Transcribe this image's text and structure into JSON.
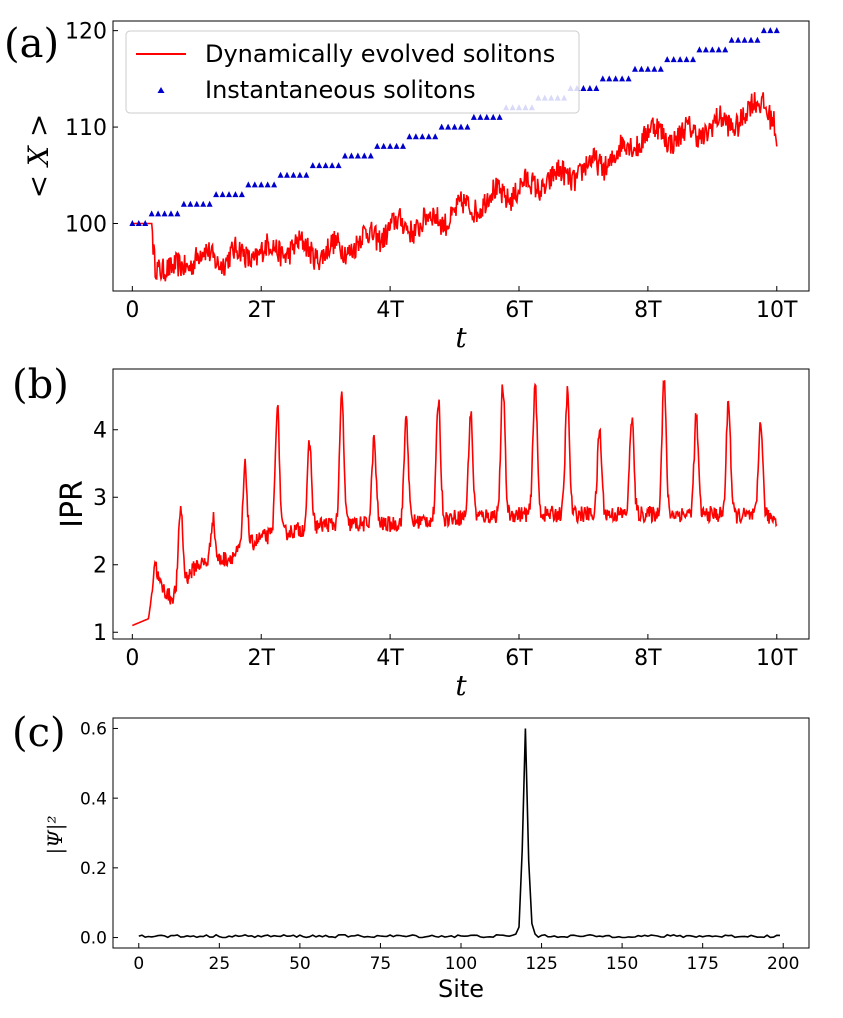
{
  "chart_data": [
    {
      "panel": "(a)",
      "type": "line+scatter",
      "xlabel": "t",
      "ylabel": "< X >",
      "xlim": [
        -0.3,
        10.5
      ],
      "ylim": [
        93,
        121
      ],
      "xticks": [
        0,
        2,
        4,
        6,
        8,
        10
      ],
      "xtick_labels": [
        "0",
        "2T",
        "4T",
        "6T",
        "8T",
        "10T"
      ],
      "yticks": [
        100,
        110,
        120
      ],
      "ytick_labels": [
        "100",
        "110",
        "120"
      ],
      "legend": {
        "position": "top-left",
        "entries": [
          "Dynamically evolved solitons",
          "Instantaneous solitons"
        ]
      },
      "series": [
        {
          "name": "Dynamically evolved solitons",
          "kind": "line",
          "color": "#ff0000",
          "keypoints": [
            [
              0,
              100
            ],
            [
              0.3,
              100
            ],
            [
              0.35,
              96.5
            ],
            [
              0.45,
              95.5
            ],
            [
              0.6,
              94.5
            ],
            [
              0.8,
              96
            ],
            [
              1.0,
              96.5
            ],
            [
              1.5,
              96.5
            ],
            [
              2.0,
              97
            ],
            [
              2.5,
              97.5
            ],
            [
              3.0,
              97
            ],
            [
              3.5,
              98
            ],
            [
              4.0,
              99.5
            ],
            [
              4.5,
              100
            ],
            [
              5.0,
              101
            ],
            [
              5.5,
              102.5
            ],
            [
              6.0,
              103.5
            ],
            [
              6.5,
              104.5
            ],
            [
              7.0,
              105.5
            ],
            [
              7.5,
              107
            ],
            [
              8.0,
              109.5
            ],
            [
              8.5,
              109
            ],
            [
              9.0,
              110
            ],
            [
              9.5,
              111
            ],
            [
              9.8,
              113
            ],
            [
              9.95,
              111
            ],
            [
              10.0,
              108
            ]
          ],
          "noise": 1.3
        },
        {
          "name": "Instantaneous solitons",
          "kind": "scatter",
          "marker": "triangle",
          "color": "#0000cd",
          "step_values": [
            100,
            101,
            102,
            103,
            104,
            105,
            106,
            107,
            108,
            109,
            110,
            111,
            112,
            113,
            114,
            115,
            116,
            117,
            118,
            119,
            120
          ]
        }
      ]
    },
    {
      "panel": "(b)",
      "type": "line",
      "xlabel": "t",
      "ylabel": "IPR",
      "xlim": [
        -0.3,
        10.5
      ],
      "ylim": [
        0.9,
        4.9
      ],
      "xticks": [
        0,
        2,
        4,
        6,
        8,
        10
      ],
      "xtick_labels": [
        "0",
        "2T",
        "4T",
        "6T",
        "8T",
        "10T"
      ],
      "yticks": [
        1,
        2,
        3,
        4
      ],
      "ytick_labels": [
        "1",
        "2",
        "3",
        "4"
      ],
      "series": [
        {
          "name": "IPR",
          "kind": "line",
          "color": "#ff0000",
          "baseline_keypoints": [
            [
              0,
              1.1
            ],
            [
              0.25,
              1.2
            ],
            [
              0.35,
              1.8
            ],
            [
              0.6,
              1.5
            ],
            [
              1.0,
              2.0
            ],
            [
              1.5,
              2.1
            ],
            [
              2.0,
              2.4
            ],
            [
              3.0,
              2.6
            ],
            [
              4.0,
              2.6
            ],
            [
              5.0,
              2.7
            ],
            [
              6.0,
              2.75
            ],
            [
              7.0,
              2.75
            ],
            [
              8.0,
              2.75
            ],
            [
              9.0,
              2.75
            ],
            [
              10.0,
              2.7
            ]
          ],
          "peaks": [
            [
              0.35,
              2.05
            ],
            [
              0.75,
              2.85
            ],
            [
              1.25,
              2.7
            ],
            [
              1.75,
              3.45
            ],
            [
              2.25,
              4.35
            ],
            [
              2.75,
              3.8
            ],
            [
              3.25,
              4.5
            ],
            [
              3.75,
              3.85
            ],
            [
              4.25,
              4.2
            ],
            [
              4.75,
              4.45
            ],
            [
              5.25,
              4.25
            ],
            [
              5.75,
              4.65
            ],
            [
              6.25,
              4.7
            ],
            [
              6.75,
              4.55
            ],
            [
              7.25,
              4.0
            ],
            [
              7.75,
              4.2
            ],
            [
              8.25,
              4.75
            ],
            [
              8.75,
              4.2
            ],
            [
              9.25,
              4.45
            ],
            [
              9.75,
              4.15
            ]
          ],
          "noise": 0.12
        }
      ]
    },
    {
      "panel": "(c)",
      "type": "line",
      "xlabel": "Site",
      "ylabel": "|Ψ|²",
      "xlim": [
        -8,
        208
      ],
      "ylim": [
        -0.03,
        0.63
      ],
      "xticks": [
        0,
        25,
        50,
        75,
        100,
        125,
        150,
        175,
        200
      ],
      "xtick_labels": [
        "0",
        "25",
        "50",
        "75",
        "100",
        "125",
        "150",
        "175",
        "200"
      ],
      "yticks": [
        0.0,
        0.2,
        0.4,
        0.6
      ],
      "ytick_labels": [
        "0.0",
        "0.2",
        "0.4",
        "0.6"
      ],
      "series": [
        {
          "name": "|Ψ|²",
          "kind": "line",
          "color": "#000000",
          "x_range": [
            0,
            199
          ],
          "baseline": 0.004,
          "noise": 0.004,
          "peak": {
            "x": 120,
            "y": 0.6,
            "neighbors": [
              [
                117,
                0.01
              ],
              [
                118,
                0.03
              ],
              [
                119,
                0.25
              ],
              [
                121,
                0.22
              ],
              [
                122,
                0.04
              ],
              [
                123,
                0.01
              ]
            ]
          }
        }
      ]
    }
  ]
}
